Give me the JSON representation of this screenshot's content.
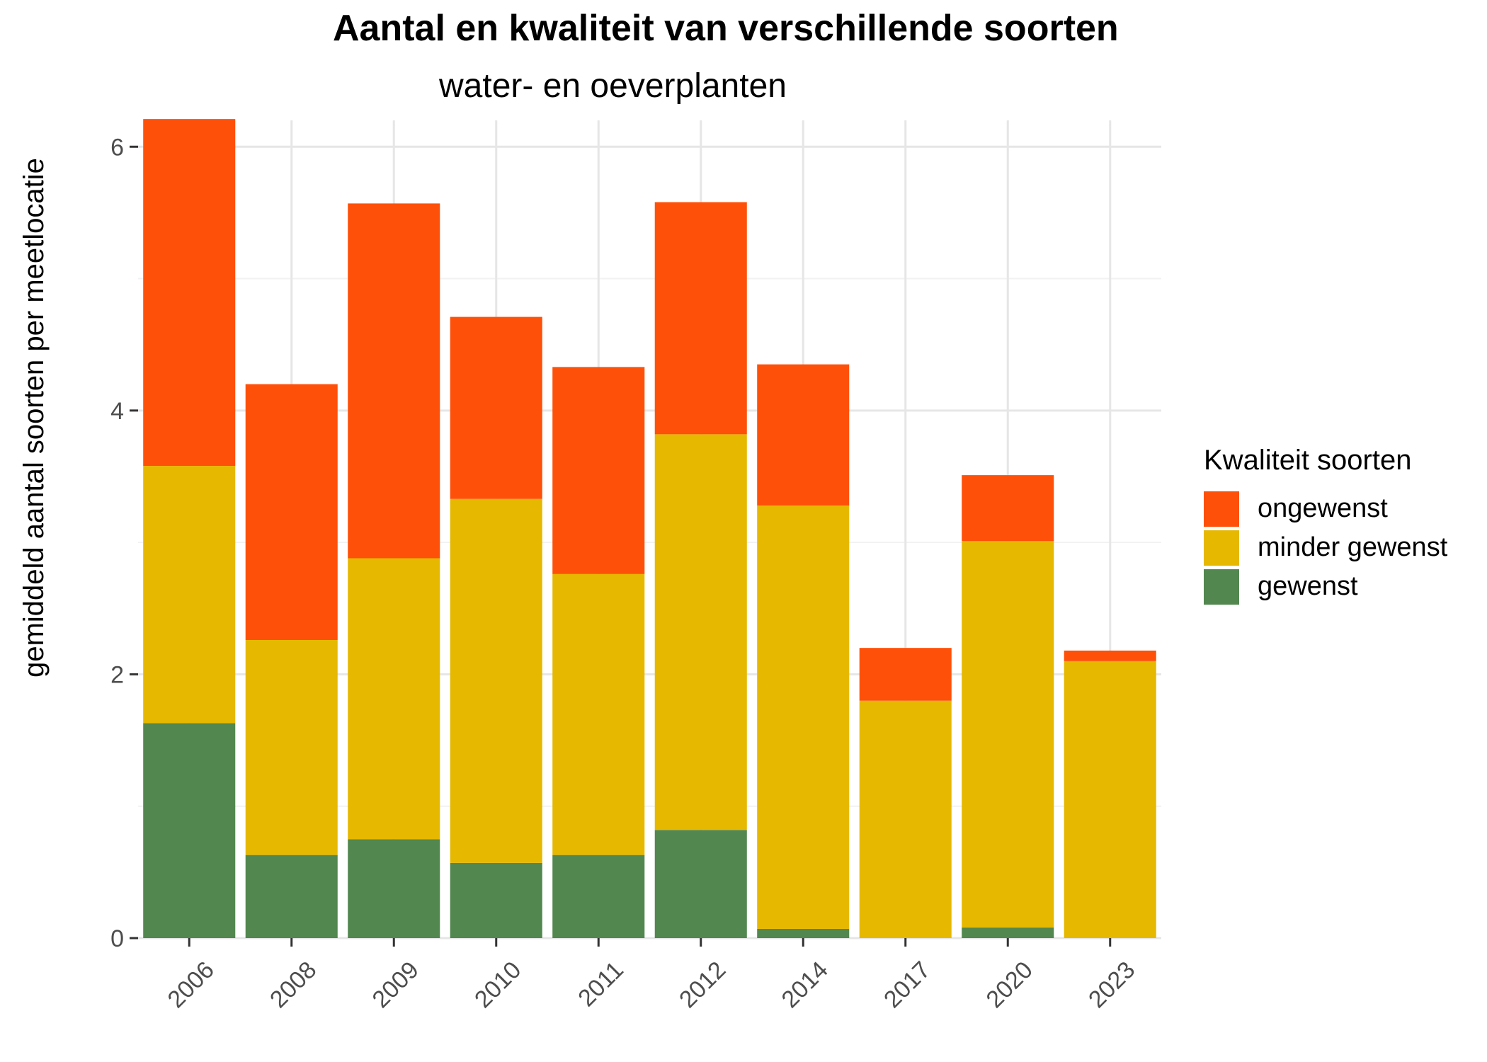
{
  "chart_data": {
    "type": "bar",
    "stacked": true,
    "title": "Aantal en kwaliteit van verschillende soorten",
    "subtitle": "water- en oeverplanten",
    "xlabel": "",
    "ylabel": "gemiddeld aantal soorten per meetlocatie",
    "ylim": [
      0,
      6.2
    ],
    "yticks": [
      0,
      2,
      4,
      6
    ],
    "grid": true,
    "legend_position": "right",
    "legend_title": "Kwaliteit soorten",
    "categories": [
      "2006",
      "2008",
      "2009",
      "2010",
      "2011",
      "2012",
      "2014",
      "2017",
      "2020",
      "2023"
    ],
    "series": [
      {
        "name": "gewenst",
        "color": "#52874F",
        "values": [
          1.63,
          0.63,
          0.75,
          0.57,
          0.63,
          0.82,
          0.07,
          0.0,
          0.08,
          0.0
        ]
      },
      {
        "name": "minder gewenst",
        "color": "#E6B800",
        "values": [
          1.95,
          1.63,
          2.13,
          2.76,
          2.13,
          3.0,
          3.21,
          1.8,
          2.93,
          2.1
        ]
      },
      {
        "name": "ongewenst",
        "color": "#FF5009",
        "values": [
          2.63,
          1.94,
          2.69,
          1.38,
          1.57,
          1.76,
          1.07,
          0.4,
          0.5,
          0.08
        ]
      }
    ],
    "legend_order": [
      "ongewenst",
      "minder gewenst",
      "gewenst"
    ]
  }
}
